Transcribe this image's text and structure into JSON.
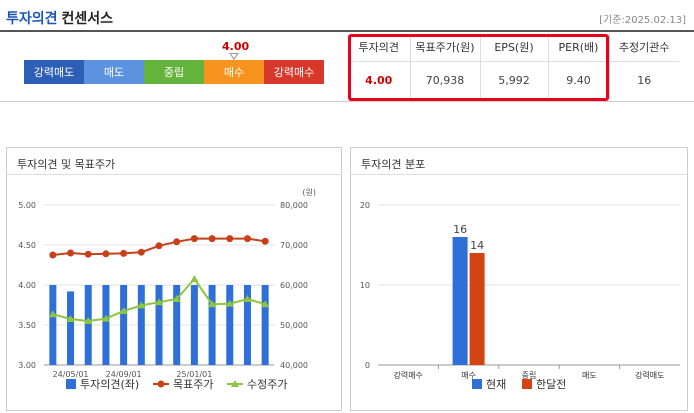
{
  "header": {
    "title": "투자의견",
    "subtitle": "컨센서스",
    "date": "[기준:2025.02.13]"
  },
  "scale": {
    "segments": [
      {
        "label": "강력매도",
        "color": "#2d5fb6"
      },
      {
        "label": "매도",
        "color": "#5b93e0"
      },
      {
        "label": "중립",
        "color": "#63b33c"
      },
      {
        "label": "매수",
        "color": "#f7941d"
      },
      {
        "label": "강력매수",
        "color": "#d8382a"
      }
    ],
    "current_value": "4.00",
    "current_level": 4.0
  },
  "consensus_table": {
    "headers": [
      "투자의견",
      "목표주가(원)",
      "EPS(원)",
      "PER(배)",
      "추정기관수"
    ],
    "values": [
      "4.00",
      "70,938",
      "5,992",
      "9.40",
      "16"
    ]
  },
  "opinion_panel": {
    "title": "투자의견 및 목표주가",
    "unit": "(원)",
    "legend": [
      "투자의견(좌)",
      "목표주가",
      "수정주가"
    ],
    "colors": {
      "bar": "#2f6fd8",
      "target": "#c8401a",
      "price": "#8cc63f"
    }
  },
  "distribution_panel": {
    "title": "투자의견 분포",
    "legend": [
      "현재",
      "한달전"
    ],
    "colors": {
      "current": "#2f6fd8",
      "month_ago": "#d44413"
    }
  },
  "chart_data": [
    {
      "type": "bar",
      "title": "투자의견 및 목표주가",
      "x_tick_labels": [
        "24/05/01",
        "24/09/01",
        "25/01/01"
      ],
      "ylim_left": [
        3.0,
        5.0
      ],
      "ylim_right": [
        40000,
        80000
      ],
      "left_ticks": [
        "5.00",
        "4.50",
        "4.00",
        "3.50",
        "3.00"
      ],
      "right_ticks": [
        "80,000",
        "70,000",
        "60,000",
        "50,000",
        "40,000"
      ],
      "series": [
        {
          "name": "투자의견(좌)",
          "type": "bar",
          "axis": "left",
          "values": [
            4.0,
            3.92,
            4.0,
            4.0,
            4.0,
            4.0,
            4.0,
            4.0,
            4.0,
            4.0,
            4.0,
            4.0,
            4.0
          ]
        },
        {
          "name": "목표주가",
          "type": "line",
          "axis": "right",
          "values": [
            67500,
            68000,
            67700,
            67800,
            67900,
            68200,
            69800,
            70800,
            71600,
            71600,
            71600,
            71600,
            70938
          ]
        },
        {
          "name": "수정주가",
          "type": "line",
          "axis": "right",
          "values": [
            52700,
            51500,
            51000,
            51600,
            53500,
            54900,
            55700,
            56500,
            61500,
            55200,
            55300,
            56500,
            55200
          ]
        }
      ]
    },
    {
      "type": "bar",
      "title": "투자의견 분포",
      "categories": [
        "강력매수",
        "매수",
        "중립",
        "매도",
        "강력매도"
      ],
      "ylim": [
        0,
        20
      ],
      "y_ticks": [
        "20",
        "10",
        "0"
      ],
      "series": [
        {
          "name": "현재",
          "values": [
            0,
            16,
            0,
            0,
            0
          ]
        },
        {
          "name": "한달전",
          "values": [
            0,
            14,
            0,
            0,
            0
          ]
        }
      ]
    }
  ]
}
